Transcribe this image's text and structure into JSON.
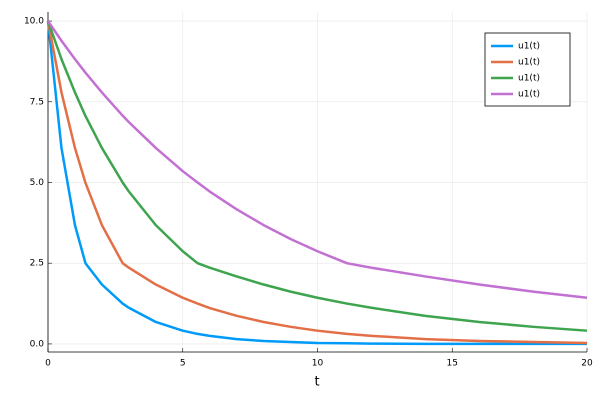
{
  "chart_data": {
    "type": "line",
    "xlabel": "t",
    "x": [
      0,
      0.5,
      1,
      1.39,
      2,
      2.77,
      3,
      4,
      5,
      5.55,
      6,
      7,
      8,
      9,
      10,
      11.09,
      12,
      14,
      16,
      18,
      20
    ],
    "series": [
      {
        "name": "u1(t)",
        "color": "#009af9",
        "values": [
          10,
          6.07,
          3.68,
          2.5,
          1.84,
          1.25,
          1.12,
          0.68,
          0.41,
          0.31,
          0.25,
          0.15,
          0.09,
          0.06,
          0.03,
          0.02,
          0.01,
          0,
          0,
          0,
          0
        ]
      },
      {
        "name": "u1(t)",
        "color": "#e26f46",
        "values": [
          10,
          7.79,
          6.07,
          4.99,
          3.68,
          2.5,
          2.36,
          1.84,
          1.43,
          1.25,
          1.11,
          0.87,
          0.68,
          0.53,
          0.41,
          0.31,
          0.25,
          0.15,
          0.09,
          0.06,
          0.03
        ]
      },
      {
        "name": "u1(t)",
        "color": "#3ea44e",
        "values": [
          10,
          8.82,
          7.79,
          7.06,
          6.07,
          5.0,
          4.72,
          3.68,
          2.87,
          2.5,
          2.36,
          2.09,
          1.84,
          1.62,
          1.43,
          1.25,
          1.12,
          0.87,
          0.68,
          0.53,
          0.41
        ]
      },
      {
        "name": "u1(t)",
        "color": "#c271d2",
        "values": [
          10,
          9.39,
          8.82,
          8.4,
          7.79,
          7.07,
          6.87,
          6.07,
          5.35,
          5.0,
          4.72,
          4.17,
          3.68,
          3.25,
          2.87,
          2.5,
          2.36,
          2.09,
          1.84,
          1.62,
          1.43
        ]
      }
    ],
    "xlim": [
      0,
      20
    ],
    "xticks": [
      0,
      5,
      10,
      15,
      20
    ],
    "ylim": [
      -0.25,
      10.28
    ],
    "yticks": [
      {
        "value": 0,
        "label": "0.0"
      },
      2.5,
      {
        "value": 5,
        "label": "5.0"
      },
      7.5,
      {
        "value": 10,
        "label": "10.0"
      }
    ],
    "grid": true,
    "legend": "top-right"
  }
}
